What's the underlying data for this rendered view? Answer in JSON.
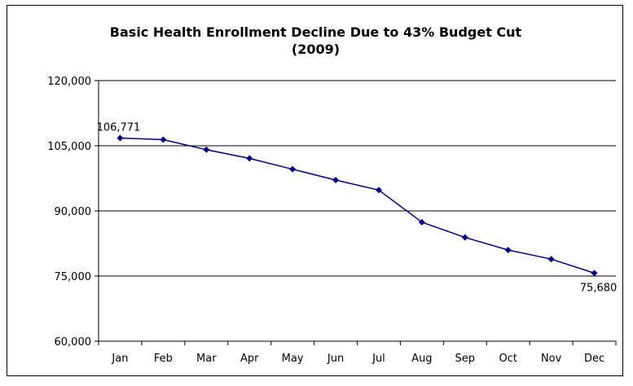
{
  "chart_data": {
    "type": "line",
    "title_line1": "Basic Health Enrollment Decline Due to 43% Budget Cut",
    "title_line2": "(2009)",
    "categories": [
      "Jan",
      "Feb",
      "Mar",
      "Apr",
      "May",
      "Jun",
      "Jul",
      "Aug",
      "Sep",
      "Oct",
      "Nov",
      "Dec"
    ],
    "series": [
      {
        "values": [
          106771,
          106400,
          104100,
          102100,
          99600,
          97100,
          94800,
          87400,
          83900,
          81000,
          78900,
          75680
        ]
      }
    ],
    "y_ticks": [
      "60,000",
      "75,000",
      "90,000",
      "105,000",
      "120,000"
    ],
    "ylim": [
      60000,
      120000
    ],
    "y_tick_values": [
      60000,
      75000,
      90000,
      105000,
      120000
    ],
    "grid": true,
    "data_labels": [
      {
        "index": 0,
        "text": "106,771"
      },
      {
        "index": 11,
        "text": "75,680"
      }
    ],
    "colors": {
      "line": "#000080",
      "marker": "#000080",
      "grid": "#000000"
    }
  }
}
